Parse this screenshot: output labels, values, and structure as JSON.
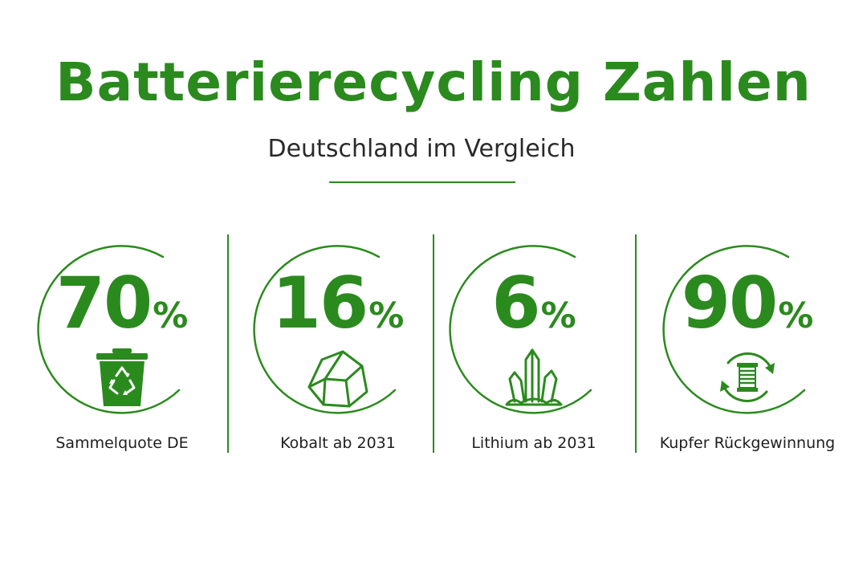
{
  "header": {
    "title": "Batterierecycling Zahlen",
    "subtitle": "Deutschland im Vergleich"
  },
  "colors": {
    "accent": "#2b8a1e",
    "text": "#1e1e1e"
  },
  "stats": [
    {
      "value": "70",
      "unit": "%",
      "label": "Sammelquote DE",
      "icon": "recycling-bin-icon"
    },
    {
      "value": "16",
      "unit": "%",
      "label": "Kobalt ab 2031",
      "icon": "cobalt-rock-icon"
    },
    {
      "value": "6",
      "unit": "%",
      "label": "Lithium ab 2031",
      "icon": "lithium-crystal-icon"
    },
    {
      "value": "90",
      "unit": "%",
      "label": "Kupfer Rückgewinnung",
      "icon": "copper-coil-cycle-icon"
    }
  ]
}
